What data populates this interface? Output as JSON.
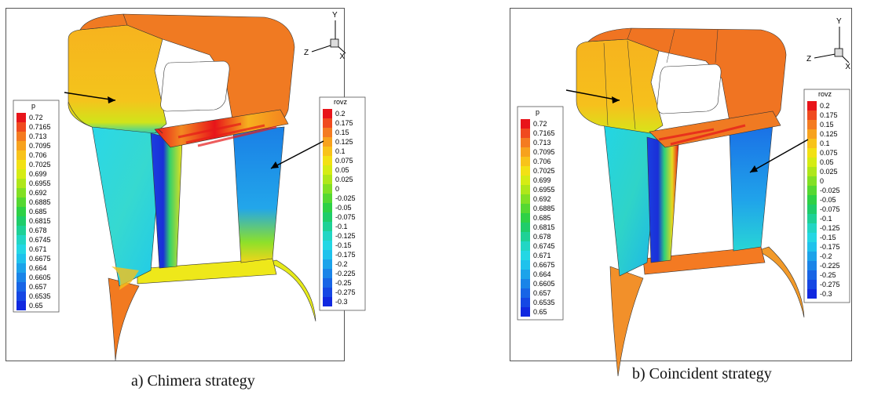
{
  "panels": [
    {
      "caption": "a)    Chimera strategy",
      "axes": {
        "x": "X",
        "y": "Y",
        "z": "Z"
      },
      "legend_left": {
        "title": "p",
        "labels": [
          "0.72",
          "0.7165",
          "0.713",
          "0.7095",
          "0.706",
          "0.7025",
          "0.699",
          "0.6955",
          "0.692",
          "0.6885",
          "0.685",
          "0.6815",
          "0.678",
          "0.6745",
          "0.671",
          "0.6675",
          "0.664",
          "0.6605",
          "0.657",
          "0.6535",
          "0.65"
        ]
      },
      "legend_right": {
        "title": "rovz",
        "labels": [
          "0.2",
          "0.175",
          "0.15",
          "0.125",
          "0.1",
          "0.075",
          "0.05",
          "0.025",
          "0",
          "-0.025",
          "-0.05",
          "-0.075",
          "-0.1",
          "-0.125",
          "-0.15",
          "-0.175",
          "-0.2",
          "-0.225",
          "-0.25",
          "-0.275",
          "-0.3"
        ]
      }
    },
    {
      "caption": "b)    Coincident strategy",
      "axes": {
        "x": "X",
        "y": "Y",
        "z": "Z"
      },
      "legend_left": {
        "title": "p",
        "labels": [
          "0.72",
          "0.7165",
          "0.713",
          "0.7095",
          "0.706",
          "0.7025",
          "0.699",
          "0.6955",
          "0.692",
          "0.6885",
          "0.685",
          "0.6815",
          "0.678",
          "0.6745",
          "0.671",
          "0.6675",
          "0.664",
          "0.6605",
          "0.657",
          "0.6535",
          "0.65"
        ]
      },
      "legend_right": {
        "title": "rovz",
        "labels": [
          "0.2",
          "0.175",
          "0.15",
          "0.125",
          "0.1",
          "0.075",
          "0.05",
          "0.025",
          "0",
          "-0.025",
          "-0.05",
          "-0.075",
          "-0.1",
          "-0.125",
          "-0.15",
          "-0.175",
          "-0.2",
          "-0.225",
          "-0.25",
          "-0.275",
          "-0.3"
        ]
      }
    }
  ],
  "colorbar_colors": [
    "#e8141a",
    "#f04a1f",
    "#f47b21",
    "#f7a21e",
    "#f8c31a",
    "#f2e114",
    "#d5ec14",
    "#afe71a",
    "#82e024",
    "#55d832",
    "#2ed146",
    "#1fcd6a",
    "#1ed196",
    "#22d6c4",
    "#24d7e4",
    "#1fc2ec",
    "#1ca3ea",
    "#1a84e8",
    "#1865e6",
    "#1547e4",
    "#1028e0"
  ]
}
